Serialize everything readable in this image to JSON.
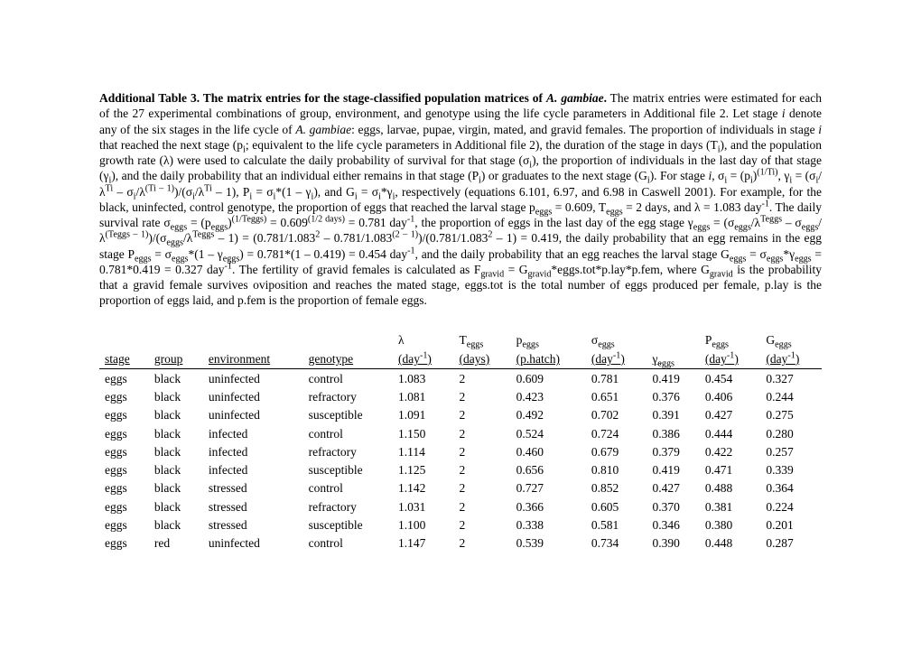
{
  "title_lead": "Additional Table 3. The matrix entries for the stage-classified population matrices of ",
  "title_species": "A. gambiae",
  "title_tail": ".",
  "columns": [
    "stage",
    "group",
    "environment",
    "genotype",
    "λ",
    "T_eggs",
    "p_eggs",
    "σ_eggs",
    "γ_eggs",
    "P_eggs",
    "G_eggs"
  ],
  "units": [
    "",
    "",
    "",
    "",
    "(day⁻¹)",
    "(days)",
    "(p.hatch)",
    "(day⁻¹)",
    "",
    "(day⁻¹)",
    "(day⁻¹)"
  ],
  "rows": [
    [
      "eggs",
      "black",
      "uninfected",
      "control",
      "1.083",
      "2",
      "0.609",
      "0.781",
      "0.419",
      "0.454",
      "0.327"
    ],
    [
      "eggs",
      "black",
      "uninfected",
      "refractory",
      "1.081",
      "2",
      "0.423",
      "0.651",
      "0.376",
      "0.406",
      "0.244"
    ],
    [
      "eggs",
      "black",
      "uninfected",
      "susceptible",
      "1.091",
      "2",
      "0.492",
      "0.702",
      "0.391",
      "0.427",
      "0.275"
    ],
    [
      "eggs",
      "black",
      "infected",
      "control",
      "1.150",
      "2",
      "0.524",
      "0.724",
      "0.386",
      "0.444",
      "0.280"
    ],
    [
      "eggs",
      "black",
      "infected",
      "refractory",
      "1.114",
      "2",
      "0.460",
      "0.679",
      "0.379",
      "0.422",
      "0.257"
    ],
    [
      "eggs",
      "black",
      "infected",
      "susceptible",
      "1.125",
      "2",
      "0.656",
      "0.810",
      "0.419",
      "0.471",
      "0.339"
    ],
    [
      "eggs",
      "black",
      "stressed",
      "control",
      "1.142",
      "2",
      "0.727",
      "0.852",
      "0.427",
      "0.488",
      "0.364"
    ],
    [
      "eggs",
      "black",
      "stressed",
      "refractory",
      "1.031",
      "2",
      "0.366",
      "0.605",
      "0.370",
      "0.381",
      "0.224"
    ],
    [
      "eggs",
      "black",
      "stressed",
      "susceptible",
      "1.100",
      "2",
      "0.338",
      "0.581",
      "0.346",
      "0.380",
      "0.201"
    ],
    [
      "eggs",
      "red",
      "uninfected",
      "control",
      "1.147",
      "2",
      "0.539",
      "0.734",
      "0.390",
      "0.448",
      "0.287"
    ]
  ]
}
